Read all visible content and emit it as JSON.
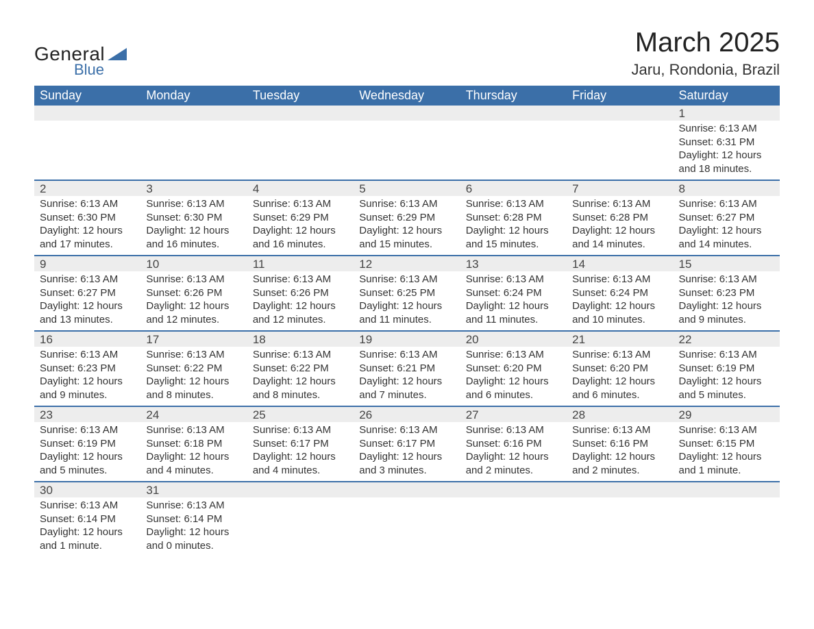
{
  "logo": {
    "text_general": "General",
    "text_blue": "Blue",
    "triangle_color": "#3b6fa8"
  },
  "title": "March 2025",
  "location": "Jaru, Rondonia, Brazil",
  "colors": {
    "header_bg": "#3b6fa8",
    "header_text": "#ffffff",
    "daynum_bg": "#ededed",
    "row_border": "#3b6fa8",
    "body_text": "#333333",
    "page_bg": "#ffffff"
  },
  "typography": {
    "title_fontsize": 40,
    "location_fontsize": 22,
    "header_fontsize": 18,
    "daynum_fontsize": 17,
    "body_fontsize": 15,
    "font_family": "Arial"
  },
  "layout": {
    "columns": 7,
    "rows": 6,
    "first_day_column_index": 6
  },
  "day_headers": [
    "Sunday",
    "Monday",
    "Tuesday",
    "Wednesday",
    "Thursday",
    "Friday",
    "Saturday"
  ],
  "weeks": [
    [
      null,
      null,
      null,
      null,
      null,
      null,
      {
        "n": "1",
        "sunrise": "Sunrise: 6:13 AM",
        "sunset": "Sunset: 6:31 PM",
        "day1": "Daylight: 12 hours",
        "day2": "and 18 minutes."
      }
    ],
    [
      {
        "n": "2",
        "sunrise": "Sunrise: 6:13 AM",
        "sunset": "Sunset: 6:30 PM",
        "day1": "Daylight: 12 hours",
        "day2": "and 17 minutes."
      },
      {
        "n": "3",
        "sunrise": "Sunrise: 6:13 AM",
        "sunset": "Sunset: 6:30 PM",
        "day1": "Daylight: 12 hours",
        "day2": "and 16 minutes."
      },
      {
        "n": "4",
        "sunrise": "Sunrise: 6:13 AM",
        "sunset": "Sunset: 6:29 PM",
        "day1": "Daylight: 12 hours",
        "day2": "and 16 minutes."
      },
      {
        "n": "5",
        "sunrise": "Sunrise: 6:13 AM",
        "sunset": "Sunset: 6:29 PM",
        "day1": "Daylight: 12 hours",
        "day2": "and 15 minutes."
      },
      {
        "n": "6",
        "sunrise": "Sunrise: 6:13 AM",
        "sunset": "Sunset: 6:28 PM",
        "day1": "Daylight: 12 hours",
        "day2": "and 15 minutes."
      },
      {
        "n": "7",
        "sunrise": "Sunrise: 6:13 AM",
        "sunset": "Sunset: 6:28 PM",
        "day1": "Daylight: 12 hours",
        "day2": "and 14 minutes."
      },
      {
        "n": "8",
        "sunrise": "Sunrise: 6:13 AM",
        "sunset": "Sunset: 6:27 PM",
        "day1": "Daylight: 12 hours",
        "day2": "and 14 minutes."
      }
    ],
    [
      {
        "n": "9",
        "sunrise": "Sunrise: 6:13 AM",
        "sunset": "Sunset: 6:27 PM",
        "day1": "Daylight: 12 hours",
        "day2": "and 13 minutes."
      },
      {
        "n": "10",
        "sunrise": "Sunrise: 6:13 AM",
        "sunset": "Sunset: 6:26 PM",
        "day1": "Daylight: 12 hours",
        "day2": "and 12 minutes."
      },
      {
        "n": "11",
        "sunrise": "Sunrise: 6:13 AM",
        "sunset": "Sunset: 6:26 PM",
        "day1": "Daylight: 12 hours",
        "day2": "and 12 minutes."
      },
      {
        "n": "12",
        "sunrise": "Sunrise: 6:13 AM",
        "sunset": "Sunset: 6:25 PM",
        "day1": "Daylight: 12 hours",
        "day2": "and 11 minutes."
      },
      {
        "n": "13",
        "sunrise": "Sunrise: 6:13 AM",
        "sunset": "Sunset: 6:24 PM",
        "day1": "Daylight: 12 hours",
        "day2": "and 11 minutes."
      },
      {
        "n": "14",
        "sunrise": "Sunrise: 6:13 AM",
        "sunset": "Sunset: 6:24 PM",
        "day1": "Daylight: 12 hours",
        "day2": "and 10 minutes."
      },
      {
        "n": "15",
        "sunrise": "Sunrise: 6:13 AM",
        "sunset": "Sunset: 6:23 PM",
        "day1": "Daylight: 12 hours",
        "day2": "and 9 minutes."
      }
    ],
    [
      {
        "n": "16",
        "sunrise": "Sunrise: 6:13 AM",
        "sunset": "Sunset: 6:23 PM",
        "day1": "Daylight: 12 hours",
        "day2": "and 9 minutes."
      },
      {
        "n": "17",
        "sunrise": "Sunrise: 6:13 AM",
        "sunset": "Sunset: 6:22 PM",
        "day1": "Daylight: 12 hours",
        "day2": "and 8 minutes."
      },
      {
        "n": "18",
        "sunrise": "Sunrise: 6:13 AM",
        "sunset": "Sunset: 6:22 PM",
        "day1": "Daylight: 12 hours",
        "day2": "and 8 minutes."
      },
      {
        "n": "19",
        "sunrise": "Sunrise: 6:13 AM",
        "sunset": "Sunset: 6:21 PM",
        "day1": "Daylight: 12 hours",
        "day2": "and 7 minutes."
      },
      {
        "n": "20",
        "sunrise": "Sunrise: 6:13 AM",
        "sunset": "Sunset: 6:20 PM",
        "day1": "Daylight: 12 hours",
        "day2": "and 6 minutes."
      },
      {
        "n": "21",
        "sunrise": "Sunrise: 6:13 AM",
        "sunset": "Sunset: 6:20 PM",
        "day1": "Daylight: 12 hours",
        "day2": "and 6 minutes."
      },
      {
        "n": "22",
        "sunrise": "Sunrise: 6:13 AM",
        "sunset": "Sunset: 6:19 PM",
        "day1": "Daylight: 12 hours",
        "day2": "and 5 minutes."
      }
    ],
    [
      {
        "n": "23",
        "sunrise": "Sunrise: 6:13 AM",
        "sunset": "Sunset: 6:19 PM",
        "day1": "Daylight: 12 hours",
        "day2": "and 5 minutes."
      },
      {
        "n": "24",
        "sunrise": "Sunrise: 6:13 AM",
        "sunset": "Sunset: 6:18 PM",
        "day1": "Daylight: 12 hours",
        "day2": "and 4 minutes."
      },
      {
        "n": "25",
        "sunrise": "Sunrise: 6:13 AM",
        "sunset": "Sunset: 6:17 PM",
        "day1": "Daylight: 12 hours",
        "day2": "and 4 minutes."
      },
      {
        "n": "26",
        "sunrise": "Sunrise: 6:13 AM",
        "sunset": "Sunset: 6:17 PM",
        "day1": "Daylight: 12 hours",
        "day2": "and 3 minutes."
      },
      {
        "n": "27",
        "sunrise": "Sunrise: 6:13 AM",
        "sunset": "Sunset: 6:16 PM",
        "day1": "Daylight: 12 hours",
        "day2": "and 2 minutes."
      },
      {
        "n": "28",
        "sunrise": "Sunrise: 6:13 AM",
        "sunset": "Sunset: 6:16 PM",
        "day1": "Daylight: 12 hours",
        "day2": "and 2 minutes."
      },
      {
        "n": "29",
        "sunrise": "Sunrise: 6:13 AM",
        "sunset": "Sunset: 6:15 PM",
        "day1": "Daylight: 12 hours",
        "day2": "and 1 minute."
      }
    ],
    [
      {
        "n": "30",
        "sunrise": "Sunrise: 6:13 AM",
        "sunset": "Sunset: 6:14 PM",
        "day1": "Daylight: 12 hours",
        "day2": "and 1 minute."
      },
      {
        "n": "31",
        "sunrise": "Sunrise: 6:13 AM",
        "sunset": "Sunset: 6:14 PM",
        "day1": "Daylight: 12 hours",
        "day2": "and 0 minutes."
      },
      null,
      null,
      null,
      null,
      null
    ]
  ]
}
